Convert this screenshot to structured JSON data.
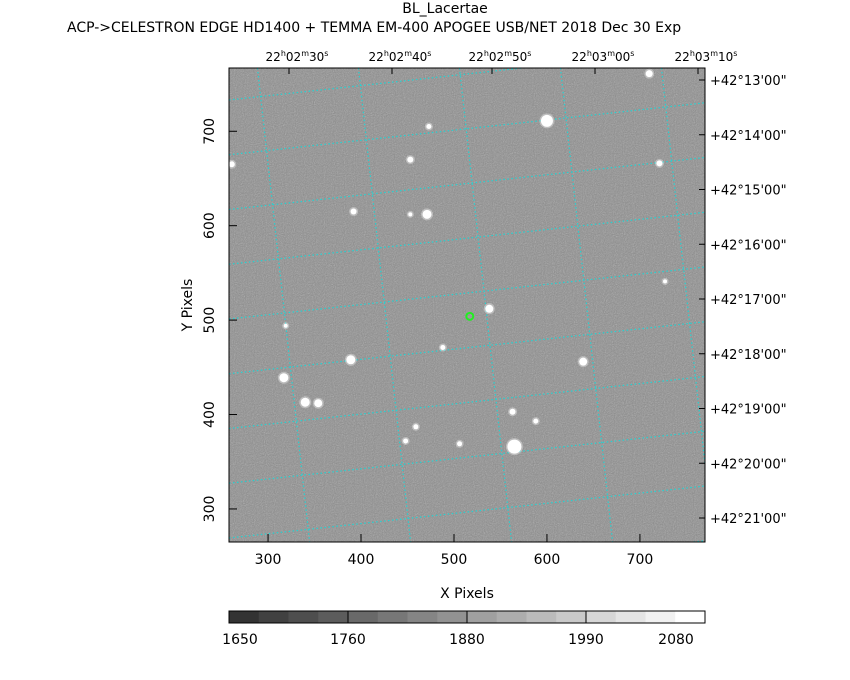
{
  "header": {
    "title": "BL_Lacertae",
    "subtitle": "ACP->CELESTRON EDGE HD1400 + TEMMA EM-400 APOGEE USB/NET   2018 Dec 30    Exp"
  },
  "chart_data": {
    "type": "heatmap",
    "xlabel": "X Pixels",
    "ylabel": "Y Pixels",
    "xlim": [
      258,
      770
    ],
    "ylim": [
      265,
      767
    ],
    "xticks": [
      300,
      400,
      500,
      600,
      700
    ],
    "yticks": [
      300,
      400,
      500,
      600,
      700
    ],
    "ra_ticks": [
      {
        "h": "22",
        "m": "02",
        "s": "30"
      },
      {
        "h": "22",
        "m": "02",
        "s": "40"
      },
      {
        "h": "22",
        "m": "02",
        "s": "50"
      },
      {
        "h": "22",
        "m": "03",
        "s": "00"
      },
      {
        "h": "22",
        "m": "03",
        "s": "10"
      }
    ],
    "dec_ticks": [
      "+42°13'00\"",
      "+42°14'00\"",
      "+42°15'00\"",
      "+42°16'00\"",
      "+42°17'00\"",
      "+42°18'00\"",
      "+42°19'00\"",
      "+42°20'00\"",
      "+42°21'00\""
    ],
    "grid_color": "#22d3d3",
    "target_color": "#22ee22",
    "target": {
      "x": 517,
      "y": 504
    },
    "stars": [
      {
        "x": 600,
        "y": 711,
        "s": 6
      },
      {
        "x": 473,
        "y": 705,
        "s": 2.5
      },
      {
        "x": 453,
        "y": 670,
        "s": 3
      },
      {
        "x": 721,
        "y": 666,
        "s": 3
      },
      {
        "x": 471,
        "y": 612,
        "s": 4.5
      },
      {
        "x": 392,
        "y": 615,
        "s": 3
      },
      {
        "x": 453,
        "y": 612,
        "s": 2
      },
      {
        "x": 538,
        "y": 512,
        "s": 4
      },
      {
        "x": 389,
        "y": 458,
        "s": 4.5
      },
      {
        "x": 488,
        "y": 471,
        "s": 2.5
      },
      {
        "x": 639,
        "y": 456,
        "s": 4
      },
      {
        "x": 317,
        "y": 439,
        "s": 4.5
      },
      {
        "x": 340,
        "y": 413,
        "s": 4.5
      },
      {
        "x": 354,
        "y": 412,
        "s": 4
      },
      {
        "x": 565,
        "y": 366,
        "s": 7
      },
      {
        "x": 563,
        "y": 403,
        "s": 3
      },
      {
        "x": 588,
        "y": 393,
        "s": 2.5
      },
      {
        "x": 459,
        "y": 387,
        "s": 2.5
      },
      {
        "x": 448,
        "y": 372,
        "s": 2.5
      },
      {
        "x": 506,
        "y": 369,
        "s": 2.5
      },
      {
        "x": 710,
        "y": 761,
        "s": 3.5
      },
      {
        "x": 727,
        "y": 541,
        "s": 2
      },
      {
        "x": 319,
        "y": 494,
        "s": 2
      },
      {
        "x": 261,
        "y": 665,
        "s": 3
      }
    ],
    "colorbar": {
      "ticks": [
        1650,
        1760,
        1880,
        1990,
        2080
      ],
      "min": 1650,
      "max": 2080,
      "steps": 16
    }
  }
}
